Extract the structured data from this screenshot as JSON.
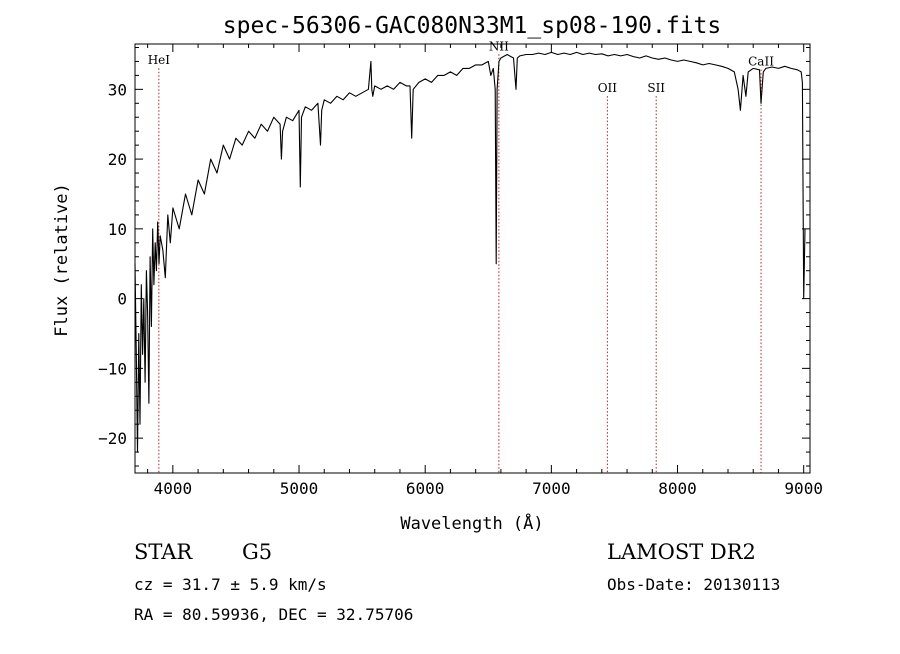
{
  "chart_data": {
    "type": "line",
    "title": "spec-56306-GAC080N33M1_sp08-190.fits",
    "xlabel": "Wavelength (Å)",
    "ylabel": "Flux (relative)",
    "xlim": [
      3700,
      9050
    ],
    "ylim": [
      -25,
      36.5
    ],
    "xticks": [
      4000,
      5000,
      6000,
      7000,
      8000,
      9000
    ],
    "yticks": [
      -20,
      -10,
      0,
      10,
      20,
      30
    ],
    "xtick_labels": [
      "4000",
      "5000",
      "6000",
      "7000",
      "8000",
      "9000"
    ],
    "ytick_labels": [
      "−20",
      "−10",
      "0",
      "10",
      "20",
      "30"
    ],
    "grid": false,
    "series": [
      {
        "x": [
          3700,
          3710,
          3720,
          3730,
          3740,
          3750,
          3760,
          3770,
          3780,
          3790,
          3800,
          3810,
          3820,
          3830,
          3840,
          3850,
          3860,
          3870,
          3880,
          3890,
          3900,
          3920,
          3940,
          3960,
          3980,
          4000,
          4050,
          4100,
          4150,
          4200,
          4250,
          4300,
          4350,
          4400,
          4450,
          4500,
          4550,
          4600,
          4650,
          4700,
          4750,
          4800,
          4850,
          4860,
          4870,
          4900,
          4950,
          5000,
          5010,
          5020,
          5050,
          5100,
          5150,
          5170,
          5180,
          5200,
          5250,
          5300,
          5350,
          5400,
          5450,
          5500,
          5550,
          5570,
          5577,
          5585,
          5600,
          5650,
          5700,
          5750,
          5800,
          5850,
          5880,
          5893,
          5905,
          5950,
          6000,
          6050,
          6100,
          6150,
          6200,
          6250,
          6300,
          6350,
          6400,
          6450,
          6500,
          6520,
          6540,
          6555,
          6563,
          6570,
          6585,
          6600,
          6650,
          6700,
          6720,
          6730,
          6750,
          6800,
          6850,
          6900,
          6950,
          7000,
          7050,
          7100,
          7150,
          7200,
          7250,
          7300,
          7350,
          7400,
          7450,
          7500,
          7550,
          7600,
          7650,
          7700,
          7750,
          7800,
          7850,
          7900,
          7950,
          8000,
          8050,
          8100,
          8150,
          8200,
          8250,
          8300,
          8350,
          8400,
          8450,
          8480,
          8498,
          8520,
          8542,
          8560,
          8600,
          8650,
          8662,
          8680,
          8700,
          8750,
          8800,
          8850,
          8900,
          8950,
          8980,
          8990,
          9000,
          9010
        ],
        "y": [
          5,
          -8,
          -22,
          -5,
          -18,
          2,
          -8,
          0,
          -12,
          4,
          -2,
          -15,
          6,
          -4,
          10,
          2,
          8,
          4,
          11,
          5,
          9,
          7,
          3,
          12,
          8,
          13,
          10,
          15,
          12,
          17,
          15,
          20,
          18,
          22,
          20,
          23,
          22,
          24,
          23,
          25,
          24,
          26,
          25,
          20,
          24,
          26,
          25.5,
          27,
          16,
          26,
          27.5,
          27,
          28,
          22,
          27,
          28.5,
          28,
          29,
          28.5,
          29.5,
          29,
          29.5,
          30,
          34,
          30,
          29,
          30.5,
          30,
          30.5,
          30,
          31,
          30.5,
          30.5,
          23,
          30,
          31,
          31.5,
          31,
          32,
          32,
          32.5,
          32,
          33,
          33,
          33.5,
          33.5,
          34,
          32,
          33,
          30,
          5,
          30,
          34,
          34.5,
          35,
          34.5,
          30,
          34.5,
          34.8,
          35,
          35,
          35.2,
          35,
          35.3,
          35,
          35.2,
          35,
          35.3,
          35,
          35.2,
          35,
          35.1,
          34.8,
          35,
          34.8,
          35,
          34.7,
          34.5,
          34.8,
          34.5,
          34.3,
          34.5,
          34.2,
          34,
          34.2,
          34,
          33.8,
          33.5,
          33.7,
          33.5,
          33.3,
          33,
          32.5,
          30,
          27,
          32,
          29,
          32.5,
          33,
          32.8,
          28,
          32.5,
          33,
          33.2,
          33,
          33.3,
          33,
          32.8,
          32.5,
          31,
          0,
          10
        ]
      }
    ],
    "vlines": [
      {
        "name": "HeI",
        "x": 3889,
        "label_y": 33.6
      },
      {
        "name": "NII",
        "x": 6584,
        "label_y": 35.6
      },
      {
        "name": "OII",
        "x": 7444,
        "label_y": 29.6
      },
      {
        "name": "SII",
        "x": 7831,
        "label_y": 29.6
      },
      {
        "name": "CaII",
        "x": 8662,
        "label_y": 33.4
      }
    ],
    "colors": {
      "line": "#000000",
      "markers": "#b22222",
      "axes": "#000000"
    }
  },
  "info": {
    "object_class": "STAR",
    "subclass": "G5",
    "survey": "LAMOST DR2",
    "redshift": "cz = 31.7 ± 5.9 km/s",
    "obs_date": "Obs-Date: 20130113",
    "coords": "RA =  80.59936, DEC =  32.75706"
  }
}
